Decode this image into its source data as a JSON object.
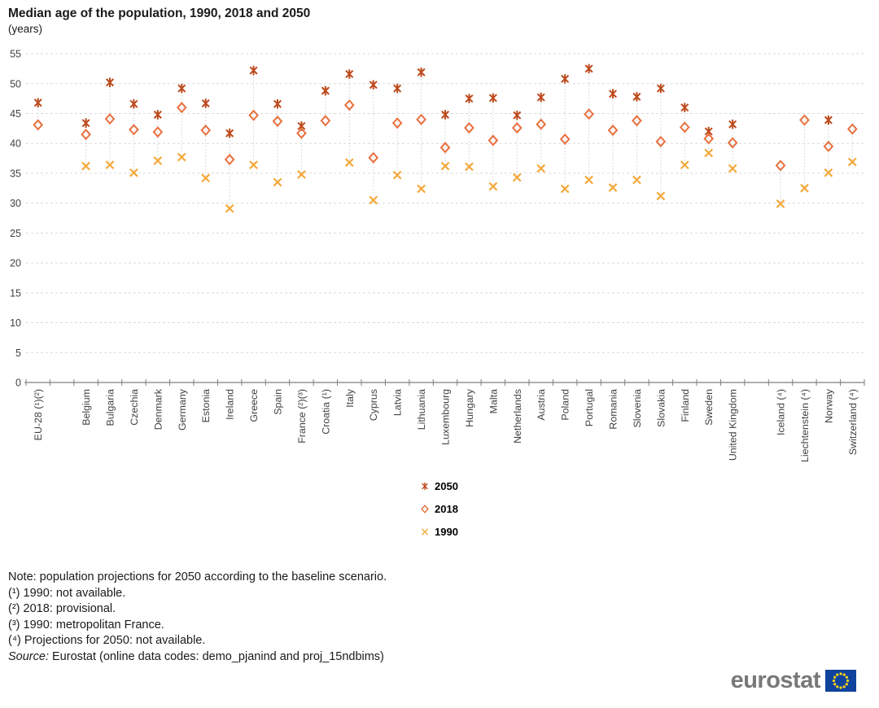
{
  "title": "Median age of the population, 1990, 2018 and 2050",
  "subtitle": "(years)",
  "legend": [
    {
      "label": "2050",
      "marker": "star",
      "color": "#bc4a1d"
    },
    {
      "label": "2018",
      "marker": "diamond",
      "color": "#e8703f"
    },
    {
      "label": "1990",
      "marker": "x",
      "color": "#f3a93c"
    }
  ],
  "notes": [
    "Note: population projections for 2050 according to the baseline scenario.",
    "(¹) 1990: not available.",
    "(²) 2018: provisional.",
    "(³) 1990: metropolitan France.",
    "(⁴) Projections for 2050: not available."
  ],
  "source": {
    "prefix": "Source:",
    "text": " Eurostat (online data codes: demo_pjanind and proj_15ndbims)"
  },
  "logo_text": "eurostat",
  "chart_data": {
    "type": "scatter",
    "title": "Median age of the population, 1990, 2018 and 2050",
    "ylabel": "(years)",
    "ylim": [
      0,
      55
    ],
    "ytick_step": 5,
    "grid": true,
    "legend_position": "bottom-center",
    "series_order": [
      "2050",
      "2018",
      "1990"
    ],
    "slots": [
      {
        "label": "EU-28 (¹)(²)",
        "v2050": 46.8,
        "v2018": 43.1,
        "v1990": null
      },
      null,
      {
        "label": "Belgium",
        "v2050": 43.4,
        "v2018": 41.5,
        "v1990": 36.2
      },
      {
        "label": "Bulgaria",
        "v2050": 50.2,
        "v2018": 44.1,
        "v1990": 36.4
      },
      {
        "label": "Czechia",
        "v2050": 46.6,
        "v2018": 42.3,
        "v1990": 35.1
      },
      {
        "label": "Denmark",
        "v2050": 44.8,
        "v2018": 41.9,
        "v1990": 37.1
      },
      {
        "label": "Germany",
        "v2050": 49.2,
        "v2018": 46.0,
        "v1990": 37.7
      },
      {
        "label": "Estonia",
        "v2050": 46.7,
        "v2018": 42.2,
        "v1990": 34.2
      },
      {
        "label": "Ireland",
        "v2050": 41.7,
        "v2018": 37.3,
        "v1990": 29.1
      },
      {
        "label": "Greece",
        "v2050": 52.2,
        "v2018": 44.7,
        "v1990": 36.4
      },
      {
        "label": "Spain",
        "v2050": 46.6,
        "v2018": 43.7,
        "v1990": 33.5
      },
      {
        "label": "France (²)(³)",
        "v2050": 42.9,
        "v2018": 41.7,
        "v1990": 34.8
      },
      {
        "label": "Croatia (¹)",
        "v2050": 48.8,
        "v2018": 43.8,
        "v1990": null
      },
      {
        "label": "Italy",
        "v2050": 51.6,
        "v2018": 46.4,
        "v1990": 36.8
      },
      {
        "label": "Cyprus",
        "v2050": 49.8,
        "v2018": 37.6,
        "v1990": 30.5
      },
      {
        "label": "Latvia",
        "v2050": 49.2,
        "v2018": 43.4,
        "v1990": 34.7
      },
      {
        "label": "Lithuania",
        "v2050": 51.9,
        "v2018": 44.0,
        "v1990": 32.4
      },
      {
        "label": "Luxembourg",
        "v2050": 44.8,
        "v2018": 39.3,
        "v1990": 36.2
      },
      {
        "label": "Hungary",
        "v2050": 47.5,
        "v2018": 42.6,
        "v1990": 36.1
      },
      {
        "label": "Malta",
        "v2050": 47.6,
        "v2018": 40.5,
        "v1990": 32.8
      },
      {
        "label": "Netherlands",
        "v2050": 44.7,
        "v2018": 42.6,
        "v1990": 34.3
      },
      {
        "label": "Austria",
        "v2050": 47.7,
        "v2018": 43.2,
        "v1990": 35.8
      },
      {
        "label": "Poland",
        "v2050": 50.8,
        "v2018": 40.7,
        "v1990": 32.4
      },
      {
        "label": "Portugal",
        "v2050": 52.5,
        "v2018": 44.9,
        "v1990": 33.9
      },
      {
        "label": "Romania",
        "v2050": 48.3,
        "v2018": 42.2,
        "v1990": 32.6
      },
      {
        "label": "Slovenia",
        "v2050": 47.8,
        "v2018": 43.8,
        "v1990": 33.9
      },
      {
        "label": "Slovakia",
        "v2050": 49.2,
        "v2018": 40.3,
        "v1990": 31.2
      },
      {
        "label": "Finland",
        "v2050": 46.0,
        "v2018": 42.7,
        "v1990": 36.4
      },
      {
        "label": "Sweden",
        "v2050": 42.0,
        "v2018": 40.8,
        "v1990": 38.4
      },
      {
        "label": "United Kingdom",
        "v2050": 43.2,
        "v2018": 40.1,
        "v1990": 35.8
      },
      null,
      {
        "label": "Iceland (⁴)",
        "v2050": null,
        "v2018": 36.3,
        "v1990": 29.9
      },
      {
        "label": "Liechtenstein (⁴)",
        "v2050": null,
        "v2018": 43.9,
        "v1990": 32.5
      },
      {
        "label": "Norway",
        "v2050": 43.9,
        "v2018": 39.5,
        "v1990": 35.1
      },
      {
        "label": "Switzerland (⁴)",
        "v2050": null,
        "v2018": 42.4,
        "v1990": 36.9
      }
    ],
    "colors": {
      "grid": "#d9d9d9",
      "axis": "#7f7f7f",
      "tick_text": "#404040",
      "connector": "#d9d9d9"
    }
  }
}
